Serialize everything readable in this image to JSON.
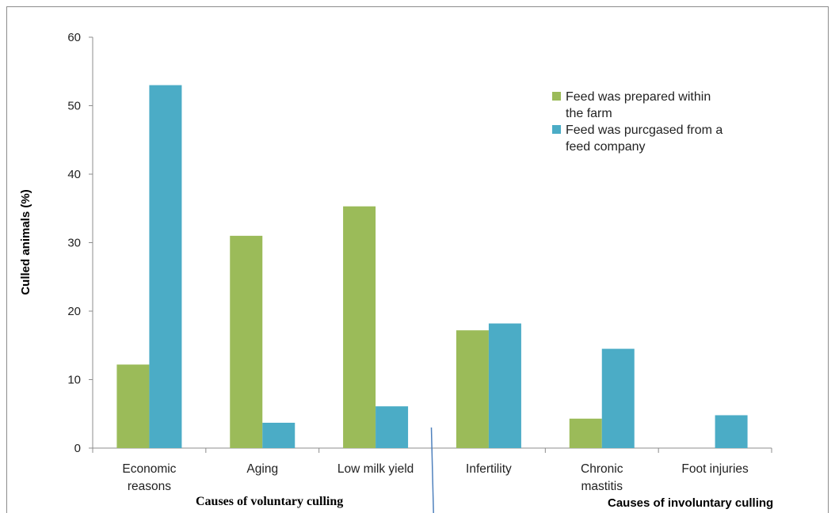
{
  "chart_data": {
    "type": "bar",
    "title": "",
    "xlabel": "",
    "ylabel": "Culled animals (%)",
    "ylim": [
      0,
      60
    ],
    "yticks": [
      0,
      10,
      20,
      30,
      40,
      50,
      60
    ],
    "grid": false,
    "legend_position": "top-right",
    "categories": [
      [
        "Economic",
        "reasons"
      ],
      [
        "Aging"
      ],
      [
        "Low milk yield"
      ],
      [
        "Infertility"
      ],
      [
        "Chronic",
        "mastitis"
      ],
      [
        "Foot injuries"
      ]
    ],
    "series": [
      {
        "name_lines": [
          "Feed was prepared within",
          "the farm"
        ],
        "color": "#9BBB59",
        "values": [
          12.2,
          31.0,
          35.3,
          17.2,
          4.3,
          0
        ]
      },
      {
        "name_lines": [
          "Feed was purcgased from a",
          "feed company"
        ],
        "color": "#4BACC6",
        "values": [
          53.0,
          3.7,
          6.1,
          18.2,
          14.5,
          4.8
        ]
      }
    ],
    "group_labels": {
      "voluntary": "Causes of voluntary culling",
      "involuntary": "Causes of involuntary culling"
    },
    "divider_color": "#4F81BD"
  }
}
